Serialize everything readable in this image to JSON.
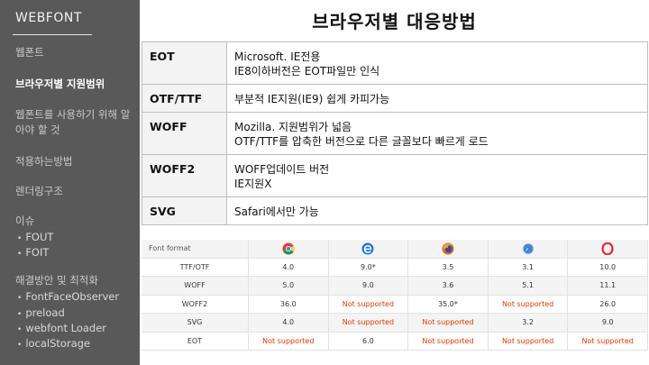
{
  "sidebar": {
    "brand": "WEBFONT",
    "items": [
      {
        "label": "웹폰트"
      },
      {
        "label": "브라우저별 지원범위"
      },
      {
        "label": "웹폰트를 사용하기 위해 알아야 할 것"
      },
      {
        "label": "적용하는방법"
      },
      {
        "label": "렌더링구조"
      },
      {
        "label": "이슈"
      },
      {
        "label": "해결방안 및 최적화"
      }
    ],
    "issue_subs": [
      "FOUT",
      "FOIT"
    ],
    "solution_subs": [
      "FontFaceObserver",
      "preload",
      "webfont Loader",
      "localStorage"
    ]
  },
  "main": {
    "title": "브라우저별 대응방법"
  },
  "support_table": [
    {
      "format": "EOT",
      "lines": [
        "Microsoft.  IE전용",
        "IE8이하버전은 EOT파일만 인식"
      ]
    },
    {
      "format": "OTF/TTF",
      "lines": [
        "부분적 IE지원(IE9) 쉽게 카피가능"
      ]
    },
    {
      "format": "WOFF",
      "lines": [
        "Mozilla. 지원범위가 넓음",
        "OTF/TTF를 압축한 버전으로 다른 글꼴보다 빠르게 로드"
      ]
    },
    {
      "format": "WOFF2",
      "lines": [
        "WOFF업데이트 버전",
        "IE지원X"
      ]
    },
    {
      "format": "SVG",
      "lines": [
        "Safari에서만 가능"
      ]
    }
  ],
  "compare_table": {
    "header_label": "Font format",
    "browsers": [
      {
        "icon": "chrome-icon",
        "color": "#4caf50"
      },
      {
        "icon": "edge-icon",
        "color": "#1e73d6"
      },
      {
        "icon": "firefox-icon",
        "color": "#e8661c"
      },
      {
        "icon": "safari-icon",
        "color": "#3b8ad9"
      },
      {
        "icon": "opera-icon",
        "color": "#e8262b"
      }
    ],
    "rows": [
      {
        "format": "TTF/OTF",
        "values": [
          "4.0",
          "9.0*",
          "3.5",
          "3.1",
          "10.0"
        ]
      },
      {
        "format": "WOFF",
        "values": [
          "5.0",
          "9.0",
          "3.6",
          "5.1",
          "11.1"
        ]
      },
      {
        "format": "WOFF2",
        "values": [
          "36.0",
          "Not supported",
          "35.0*",
          "Not supported",
          "26.0"
        ]
      },
      {
        "format": "SVG",
        "values": [
          "4.0",
          "Not supported",
          "Not supported",
          "3.2",
          "9.0"
        ]
      },
      {
        "format": "EOT",
        "values": [
          "Not supported",
          "6.0",
          "Not supported",
          "Not supported",
          "Not supported"
        ]
      }
    ],
    "unsupported_color": "#e03a00"
  }
}
